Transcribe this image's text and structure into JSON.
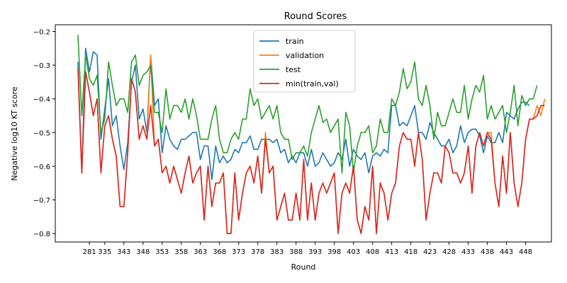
{
  "chart_data": {
    "type": "line",
    "title": "Round Scores",
    "xlabel": "Round",
    "ylabel": "Negative log10 KT score",
    "ylim": [
      -0.825,
      -0.18
    ],
    "y_ticks": [
      -0.8,
      -0.7,
      -0.6,
      -0.5,
      -0.4,
      -0.3,
      -0.2
    ],
    "x_tick_labels": [
      "281",
      "335",
      "343",
      "348",
      "353",
      "358",
      "363",
      "368",
      "373",
      "378",
      "383",
      "388",
      "393",
      "398",
      "403",
      "408",
      "413",
      "418",
      "423",
      "428",
      "433",
      "438",
      "443",
      "448"
    ],
    "legend_position": "upper center",
    "colors": {
      "train": "#1f77b4",
      "validation": "#ff7f0e",
      "test": "#2ca02c",
      "min": "#d62728"
    },
    "series": [
      {
        "name": "train",
        "values": [
          -0.29,
          -0.62,
          -0.25,
          -0.32,
          -0.26,
          -0.27,
          -0.52,
          -0.43,
          -0.34,
          -0.48,
          -0.45,
          -0.54,
          -0.61,
          -0.53,
          -0.35,
          -0.3,
          -0.46,
          -0.43,
          -0.5,
          -0.27,
          -0.42,
          -0.4,
          -0.56,
          -0.48,
          -0.52,
          -0.54,
          -0.55,
          -0.52,
          -0.52,
          -0.51,
          -0.5,
          -0.5,
          -0.58,
          -0.54,
          -0.54,
          -0.64,
          -0.54,
          -0.59,
          -0.57,
          -0.59,
          -0.58,
          -0.55,
          -0.56,
          -0.53,
          -0.53,
          -0.51,
          -0.55,
          -0.55,
          -0.52,
          -0.52,
          -0.52,
          -0.53,
          -0.52,
          -0.56,
          -0.55,
          -0.59,
          -0.57,
          -0.59,
          -0.56,
          -0.56,
          -0.6,
          -0.55,
          -0.6,
          -0.59,
          -0.56,
          -0.58,
          -0.6,
          -0.59,
          -0.56,
          -0.58,
          -0.52,
          -0.6,
          -0.55,
          -0.57,
          -0.58,
          -0.56,
          -0.62,
          -0.57,
          -0.56,
          -0.57,
          -0.55,
          -0.56,
          -0.42,
          -0.42,
          -0.48,
          -0.47,
          -0.48,
          -0.45,
          -0.42,
          -0.5,
          -0.5,
          -0.52,
          -0.47,
          -0.5,
          -0.52,
          -0.54,
          -0.54,
          -0.52,
          -0.56,
          -0.54,
          -0.48,
          -0.53,
          -0.5,
          -0.49,
          -0.49,
          -0.51,
          -0.56,
          -0.51,
          -0.53,
          -0.53,
          -0.5,
          -0.53,
          -0.44,
          -0.45,
          -0.46,
          -0.43,
          -0.41,
          -0.41,
          -0.42
        ]
      },
      {
        "name": "validation",
        "values": [
          -0.31,
          -0.62,
          -0.32,
          -0.38,
          -0.45,
          -0.4,
          -0.62,
          -0.48,
          -0.45,
          -0.52,
          -0.57,
          -0.72,
          -0.72,
          -0.56,
          -0.34,
          -0.38,
          -0.52,
          -0.48,
          -0.52,
          -0.27,
          -0.54,
          -0.52,
          -0.62,
          -0.6,
          -0.65,
          -0.6,
          -0.64,
          -0.68,
          -0.62,
          -0.57,
          -0.65,
          -0.62,
          -0.6,
          -0.76,
          -0.6,
          -0.72,
          -0.65,
          -0.65,
          -0.62,
          -0.8,
          -0.8,
          -0.62,
          -0.76,
          -0.68,
          -0.62,
          -0.6,
          -0.65,
          -0.57,
          -0.68,
          -0.5,
          -0.62,
          -0.6,
          -0.76,
          -0.72,
          -0.68,
          -0.76,
          -0.76,
          -0.68,
          -0.76,
          -0.58,
          -0.76,
          -0.65,
          -0.76,
          -0.68,
          -0.65,
          -0.68,
          -0.65,
          -0.62,
          -0.8,
          -0.68,
          -0.65,
          -0.68,
          -0.6,
          -0.76,
          -0.8,
          -0.72,
          -0.76,
          -0.6,
          -0.8,
          -0.65,
          -0.68,
          -0.76,
          -0.68,
          -0.65,
          -0.54,
          -0.5,
          -0.52,
          -0.52,
          -0.6,
          -0.5,
          -0.58,
          -0.76,
          -0.68,
          -0.62,
          -0.62,
          -0.65,
          -0.54,
          -0.56,
          -0.62,
          -0.62,
          -0.65,
          -0.62,
          -0.54,
          -0.68,
          -0.54,
          -0.5,
          -0.54,
          -0.5,
          -0.5,
          -0.65,
          -0.72,
          -0.57,
          -0.68,
          -0.5,
          -0.65,
          -0.72,
          -0.65,
          -0.52,
          -0.46,
          -0.46,
          -0.42,
          -0.45,
          -0.4
        ]
      },
      {
        "name": "test",
        "values": [
          -0.21,
          -0.45,
          -0.27,
          -0.34,
          -0.36,
          -0.33,
          -0.5,
          -0.46,
          -0.29,
          -0.36,
          -0.42,
          -0.4,
          -0.4,
          -0.44,
          -0.29,
          -0.27,
          -0.36,
          -0.33,
          -0.32,
          -0.3,
          -0.44,
          -0.44,
          -0.5,
          -0.37,
          -0.46,
          -0.42,
          -0.42,
          -0.44,
          -0.4,
          -0.46,
          -0.4,
          -0.45,
          -0.52,
          -0.52,
          -0.52,
          -0.46,
          -0.42,
          -0.52,
          -0.56,
          -0.56,
          -0.52,
          -0.5,
          -0.52,
          -0.46,
          -0.46,
          -0.37,
          -0.42,
          -0.4,
          -0.46,
          -0.44,
          -0.42,
          -0.46,
          -0.42,
          -0.5,
          -0.52,
          -0.52,
          -0.58,
          -0.56,
          -0.56,
          -0.54,
          -0.57,
          -0.5,
          -0.46,
          -0.42,
          -0.47,
          -0.46,
          -0.5,
          -0.48,
          -0.46,
          -0.62,
          -0.44,
          -0.48,
          -0.62,
          -0.54,
          -0.5,
          -0.5,
          -0.48,
          -0.56,
          -0.54,
          -0.46,
          -0.5,
          -0.5,
          -0.4,
          -0.42,
          -0.38,
          -0.31,
          -0.37,
          -0.35,
          -0.29,
          -0.4,
          -0.42,
          -0.36,
          -0.42,
          -0.52,
          -0.44,
          -0.48,
          -0.48,
          -0.44,
          -0.4,
          -0.44,
          -0.44,
          -0.36,
          -0.46,
          -0.4,
          -0.36,
          -0.38,
          -0.33,
          -0.46,
          -0.42,
          -0.46,
          -0.44,
          -0.42,
          -0.5,
          -0.44,
          -0.36,
          -0.48,
          -0.39,
          -0.42,
          -0.4,
          -0.4,
          -0.36
        ]
      },
      {
        "name": "min(train,val)",
        "values": [
          -0.31,
          -0.62,
          -0.32,
          -0.38,
          -0.45,
          -0.4,
          -0.62,
          -0.48,
          -0.45,
          -0.52,
          -0.57,
          -0.72,
          -0.72,
          -0.56,
          -0.34,
          -0.38,
          -0.52,
          -0.48,
          -0.52,
          -0.42,
          -0.54,
          -0.52,
          -0.62,
          -0.6,
          -0.65,
          -0.6,
          -0.64,
          -0.68,
          -0.62,
          -0.57,
          -0.65,
          -0.62,
          -0.6,
          -0.76,
          -0.6,
          -0.72,
          -0.65,
          -0.65,
          -0.62,
          -0.8,
          -0.8,
          -0.62,
          -0.76,
          -0.68,
          -0.62,
          -0.6,
          -0.65,
          -0.57,
          -0.68,
          -0.52,
          -0.62,
          -0.6,
          -0.76,
          -0.72,
          -0.68,
          -0.76,
          -0.76,
          -0.68,
          -0.76,
          -0.58,
          -0.76,
          -0.65,
          -0.76,
          -0.68,
          -0.65,
          -0.68,
          -0.65,
          -0.62,
          -0.8,
          -0.68,
          -0.65,
          -0.68,
          -0.6,
          -0.76,
          -0.8,
          -0.72,
          -0.76,
          -0.6,
          -0.8,
          -0.65,
          -0.68,
          -0.76,
          -0.68,
          -0.65,
          -0.54,
          -0.5,
          -0.52,
          -0.52,
          -0.6,
          -0.5,
          -0.58,
          -0.76,
          -0.68,
          -0.62,
          -0.62,
          -0.65,
          -0.54,
          -0.56,
          -0.62,
          -0.62,
          -0.65,
          -0.62,
          -0.54,
          -0.68,
          -0.54,
          -0.5,
          -0.54,
          -0.5,
          -0.52,
          -0.65,
          -0.72,
          -0.57,
          -0.68,
          -0.5,
          -0.65,
          -0.72,
          -0.65,
          -0.52,
          -0.46,
          -0.46,
          -0.45,
          -0.42,
          -0.42
        ]
      }
    ]
  }
}
